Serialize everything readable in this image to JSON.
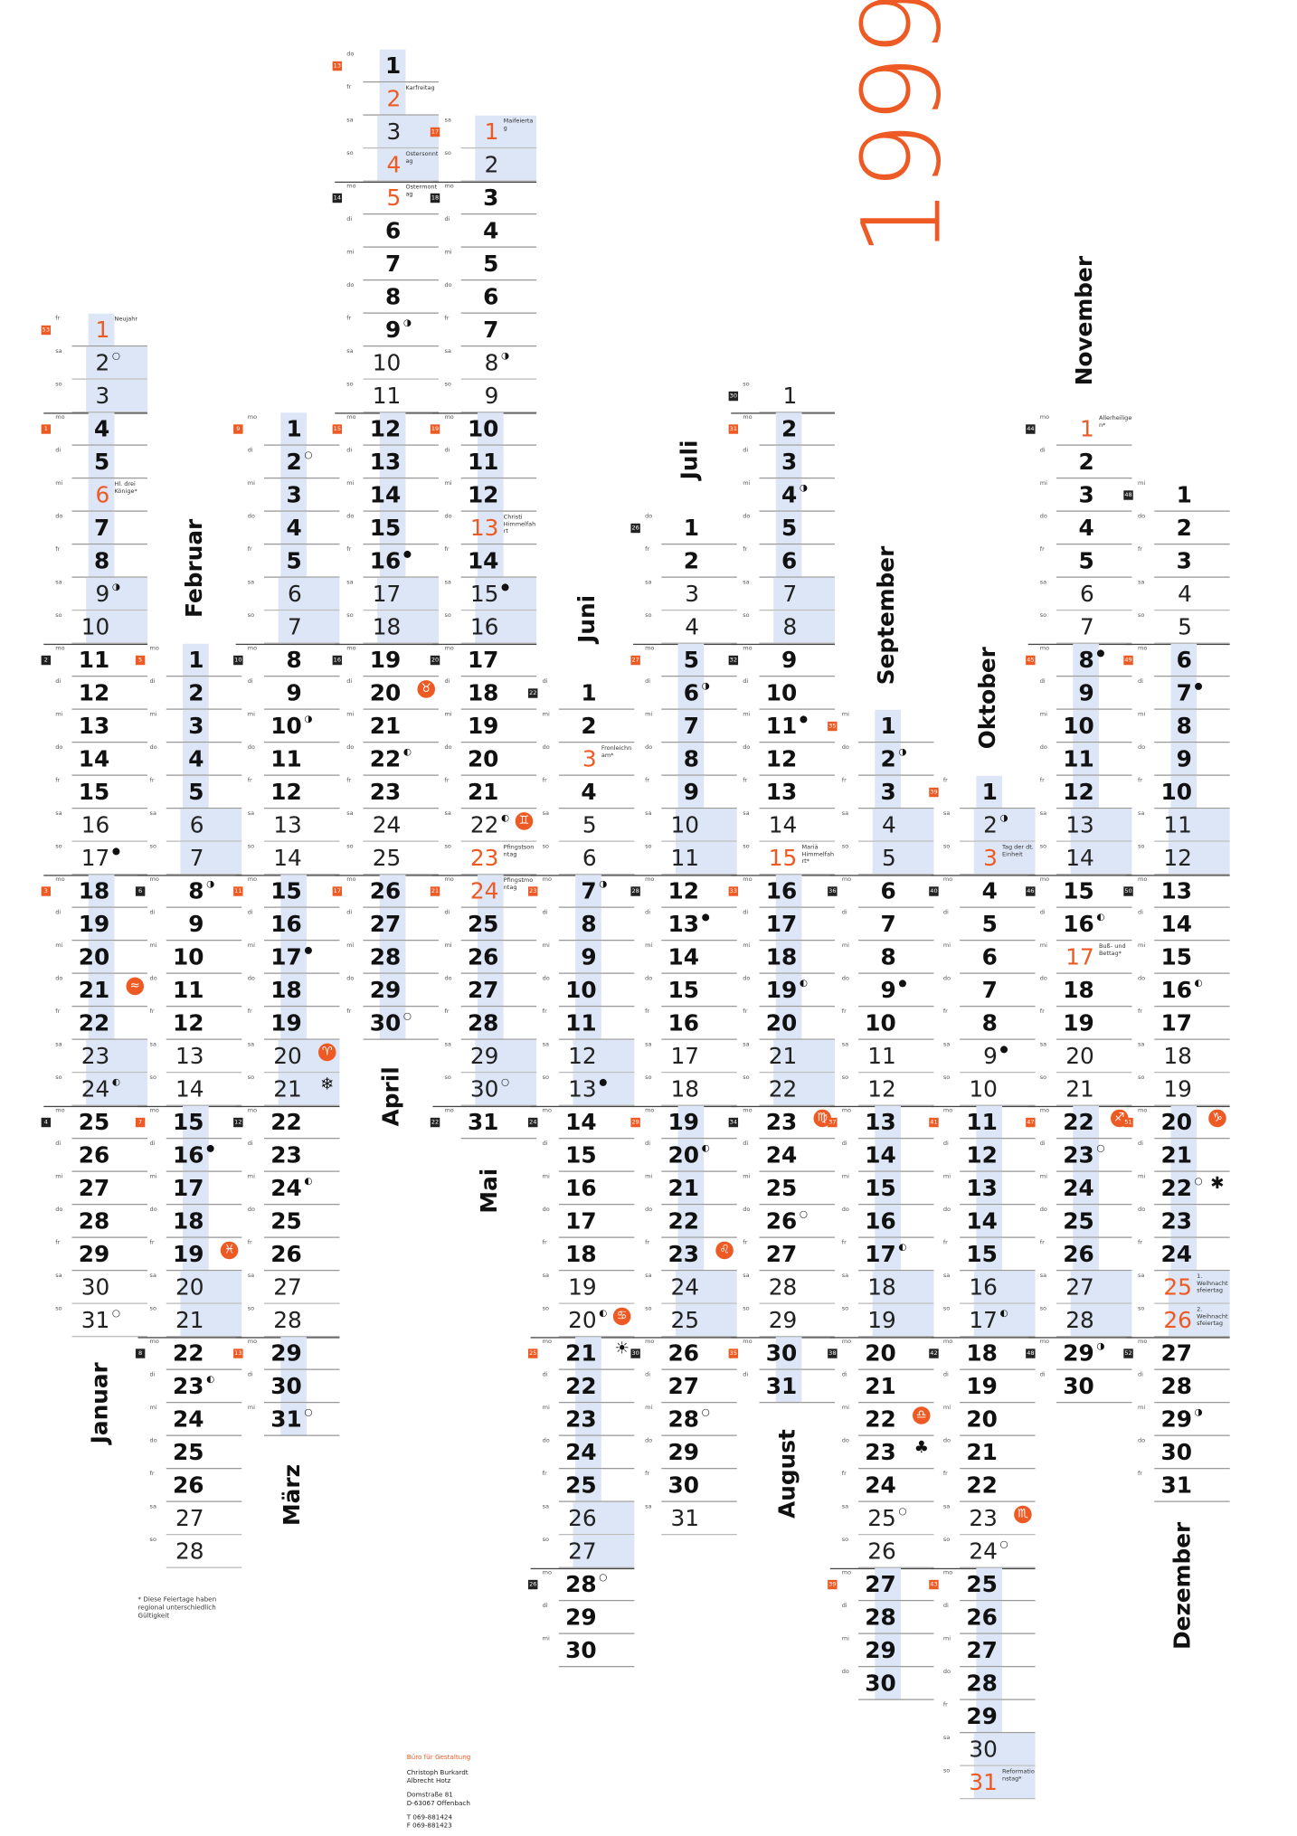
{
  "year": "1999",
  "weekdays": [
    "so",
    "mo",
    "di",
    "mi",
    "do",
    "fr",
    "sa"
  ],
  "week_numbers": [
    "53",
    "1",
    "2",
    "3",
    "4",
    "5",
    "6",
    "7",
    "8",
    "9",
    "10",
    "11",
    "12",
    "13",
    "14",
    "15",
    "16",
    "17",
    "18",
    "19",
    "20",
    "21",
    "22",
    "23",
    "24",
    "25",
    "26",
    "27",
    "28",
    "29",
    "30",
    "31",
    "32",
    "33",
    "34",
    "35",
    "36",
    "37",
    "38",
    "39",
    "40",
    "41",
    "42",
    "43",
    "44",
    "45",
    "46",
    "47",
    "48",
    "49",
    "50",
    "51",
    "52"
  ],
  "months": [
    {
      "name": "Januar",
      "days": 31
    },
    {
      "name": "Februar",
      "days": 28
    },
    {
      "name": "März",
      "days": 31
    },
    {
      "name": "April",
      "days": 30
    },
    {
      "name": "Mai",
      "days": 31
    },
    {
      "name": "Juni",
      "days": 30
    },
    {
      "name": "Juli",
      "days": 31
    },
    {
      "name": "August",
      "days": 31
    },
    {
      "name": "September",
      "days": 30
    },
    {
      "name": "Oktober",
      "days": 31
    },
    {
      "name": "November",
      "days": 30
    },
    {
      "name": "Dezember",
      "days": 31
    }
  ],
  "holidays": [
    {
      "month": 1,
      "day": 1,
      "label": "Neujahr"
    },
    {
      "month": 1,
      "day": 6,
      "label": "Hl. drei Könige*"
    },
    {
      "month": 4,
      "day": 2,
      "label": "Karfreitag"
    },
    {
      "month": 4,
      "day": 4,
      "label": "Ostersonntag"
    },
    {
      "month": 4,
      "day": 5,
      "label": "Ostermontag"
    },
    {
      "month": 5,
      "day": 1,
      "label": "Maifeiertag"
    },
    {
      "month": 5,
      "day": 13,
      "label": "Christi Himmelfahrt"
    },
    {
      "month": 5,
      "day": 23,
      "label": "Pfingstsonntag"
    },
    {
      "month": 5,
      "day": 24,
      "label": "Pfingstmontag"
    },
    {
      "month": 6,
      "day": 3,
      "label": "Fronleichnam*"
    },
    {
      "month": 8,
      "day": 15,
      "label": "Mariä Himmelfahrt*"
    },
    {
      "month": 10,
      "day": 3,
      "label": "Tag der dt. Einheit"
    },
    {
      "month": 10,
      "day": 31,
      "label": "Reformationstag*"
    },
    {
      "month": 11,
      "day": 1,
      "label": "Allerheiligen*"
    },
    {
      "month": 11,
      "day": 17,
      "label": "Buß- und Bettag*"
    },
    {
      "month": 12,
      "day": 25,
      "label": "1. Weihnachtsfeiertag"
    },
    {
      "month": 12,
      "day": 26,
      "label": "2. Weihnachtsfeiertag"
    }
  ],
  "moon_phases": [
    [
      1,
      2,
      "○"
    ],
    [
      1,
      9,
      "◑"
    ],
    [
      1,
      17,
      "●"
    ],
    [
      1,
      24,
      "◐"
    ],
    [
      1,
      31,
      "○"
    ],
    [
      2,
      8,
      "◑"
    ],
    [
      2,
      16,
      "●"
    ],
    [
      2,
      23,
      "◐"
    ],
    [
      3,
      2,
      "○"
    ],
    [
      3,
      10,
      "◑"
    ],
    [
      3,
      17,
      "●"
    ],
    [
      3,
      24,
      "◐"
    ],
    [
      3,
      31,
      "○"
    ],
    [
      4,
      9,
      "◑"
    ],
    [
      4,
      16,
      "●"
    ],
    [
      4,
      22,
      "◐"
    ],
    [
      4,
      30,
      "○"
    ],
    [
      5,
      8,
      "◑"
    ],
    [
      5,
      15,
      "●"
    ],
    [
      5,
      22,
      "◐"
    ],
    [
      5,
      30,
      "○"
    ],
    [
      6,
      7,
      "◑"
    ],
    [
      6,
      13,
      "●"
    ],
    [
      6,
      20,
      "◐"
    ],
    [
      6,
      28,
      "○"
    ],
    [
      7,
      6,
      "◑"
    ],
    [
      7,
      13,
      "●"
    ],
    [
      7,
      20,
      "◐"
    ],
    [
      7,
      28,
      "○"
    ],
    [
      8,
      4,
      "◑"
    ],
    [
      8,
      11,
      "●"
    ],
    [
      8,
      19,
      "◐"
    ],
    [
      8,
      26,
      "○"
    ],
    [
      9,
      2,
      "◑"
    ],
    [
      9,
      9,
      "●"
    ],
    [
      9,
      17,
      "◐"
    ],
    [
      9,
      25,
      "○"
    ],
    [
      10,
      2,
      "◑"
    ],
    [
      10,
      9,
      "●"
    ],
    [
      10,
      17,
      "◐"
    ],
    [
      10,
      24,
      "○"
    ],
    [
      11,
      8,
      "●"
    ],
    [
      11,
      16,
      "◐"
    ],
    [
      11,
      23,
      "○"
    ],
    [
      11,
      29,
      "◑"
    ],
    [
      12,
      7,
      "●"
    ],
    [
      12,
      16,
      "◐"
    ],
    [
      12,
      22,
      "○"
    ],
    [
      12,
      29,
      "◑"
    ]
  ],
  "zodiac": [
    {
      "month": 1,
      "day": 21,
      "symbol": "≈",
      "plain": false
    },
    {
      "month": 2,
      "day": 19,
      "symbol": "♓",
      "plain": false
    },
    {
      "month": 3,
      "day": 20,
      "symbol": "♈",
      "plain": false
    },
    {
      "month": 3,
      "day": 21,
      "symbol": "❄",
      "plain": true
    },
    {
      "month": 4,
      "day": 20,
      "symbol": "♉",
      "plain": false
    },
    {
      "month": 5,
      "day": 22,
      "symbol": "♊",
      "plain": false
    },
    {
      "month": 6,
      "day": 20,
      "symbol": "♋",
      "plain": false
    },
    {
      "month": 6,
      "day": 21,
      "symbol": "☀",
      "plain": true
    },
    {
      "month": 7,
      "day": 23,
      "symbol": "♌",
      "plain": false
    },
    {
      "month": 8,
      "day": 23,
      "symbol": "♍",
      "plain": false
    },
    {
      "month": 9,
      "day": 22,
      "symbol": "♎",
      "plain": false
    },
    {
      "month": 9,
      "day": 23,
      "symbol": "♣",
      "plain": true
    },
    {
      "month": 10,
      "day": 23,
      "symbol": "♏",
      "plain": false
    },
    {
      "month": 11,
      "day": 22,
      "symbol": "♐",
      "plain": false
    },
    {
      "month": 12,
      "day": 20,
      "symbol": "♑",
      "plain": false
    },
    {
      "month": 12,
      "day": 22,
      "symbol": "✱",
      "plain": true
    }
  ],
  "footnote": "* Diese Feiertage haben regional unterschiedlich Gültigkeit",
  "footer": {
    "org": "Büro für Gestaltung",
    "name1": "Christoph Burkardt",
    "name2": "Albrecht Hotz",
    "street": "Domstraße 81",
    "city": "D-63067 Offenbach",
    "phone": "T 069-881424",
    "fax": "F 069-881423"
  }
}
